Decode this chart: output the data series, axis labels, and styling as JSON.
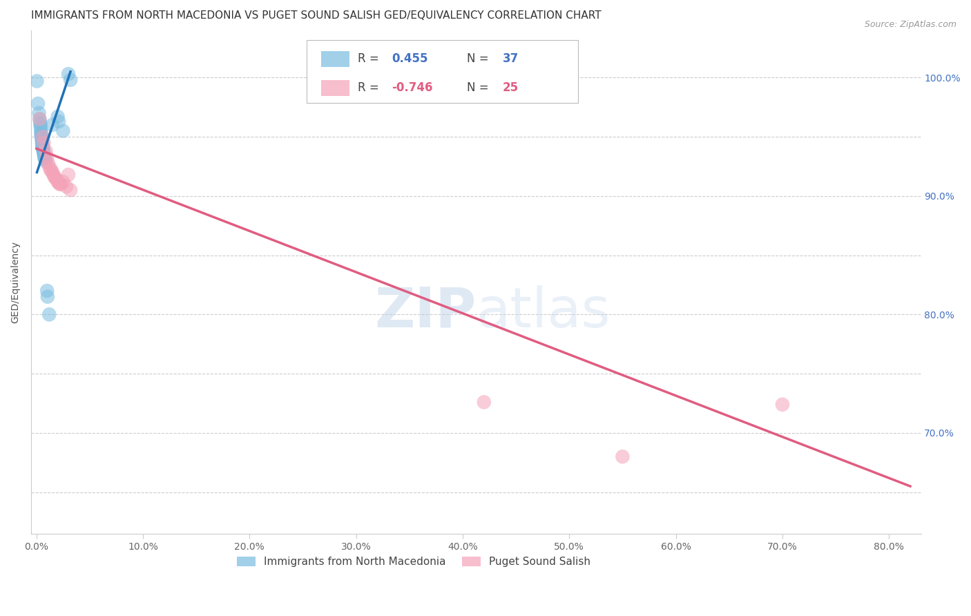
{
  "title": "IMMIGRANTS FROM NORTH MACEDONIA VS PUGET SOUND SALISH GED/EQUIVALENCY CORRELATION CHART",
  "source": "Source: ZipAtlas.com",
  "ylabel": "GED/Equivalency",
  "xlim": [
    -0.5,
    83.0
  ],
  "ylim": [
    0.615,
    1.04
  ],
  "x_ticks": [
    0.0,
    10.0,
    20.0,
    30.0,
    40.0,
    50.0,
    60.0,
    70.0,
    80.0
  ],
  "y_ticks": [
    0.65,
    0.7,
    0.75,
    0.8,
    0.85,
    0.9,
    0.95,
    1.0
  ],
  "y_tick_labels_right": [
    "",
    "70.0%",
    "",
    "80.0%",
    "",
    "90.0%",
    "",
    "100.0%"
  ],
  "blue_label": "Immigrants from North Macedonia",
  "pink_label": "Puget Sound Salish",
  "blue_R": "0.455",
  "blue_N": "37",
  "pink_R": "-0.746",
  "pink_N": "25",
  "blue_color": "#7bbde0",
  "pink_color": "#f4a3b8",
  "blue_line_color": "#2171b5",
  "pink_line_color": "#e05c80",
  "blue_dots": [
    [
      0.05,
      0.997
    ],
    [
      0.15,
      0.978
    ],
    [
      0.25,
      0.97
    ],
    [
      0.3,
      0.965
    ],
    [
      0.35,
      0.962
    ],
    [
      0.38,
      0.96
    ],
    [
      0.4,
      0.958
    ],
    [
      0.42,
      0.955
    ],
    [
      0.44,
      0.953
    ],
    [
      0.46,
      0.951
    ],
    [
      0.48,
      0.95
    ],
    [
      0.5,
      0.948
    ],
    [
      0.52,
      0.946
    ],
    [
      0.54,
      0.944
    ],
    [
      0.56,
      0.943
    ],
    [
      0.58,
      0.942
    ],
    [
      0.6,
      0.941
    ],
    [
      0.62,
      0.94
    ],
    [
      0.64,
      0.939
    ],
    [
      0.66,
      0.938
    ],
    [
      0.68,
      0.937
    ],
    [
      0.7,
      0.936
    ],
    [
      0.72,
      0.935
    ],
    [
      0.74,
      0.934
    ],
    [
      0.76,
      0.933
    ],
    [
      0.78,
      0.932
    ],
    [
      0.8,
      0.931
    ],
    [
      0.9,
      0.929
    ],
    [
      1.0,
      0.82
    ],
    [
      1.05,
      0.815
    ],
    [
      1.2,
      0.8
    ],
    [
      1.5,
      0.96
    ],
    [
      2.0,
      0.967
    ],
    [
      2.1,
      0.963
    ],
    [
      2.5,
      0.955
    ],
    [
      3.0,
      1.003
    ],
    [
      3.2,
      0.998
    ]
  ],
  "pink_dots": [
    [
      0.3,
      0.965
    ],
    [
      0.6,
      0.95
    ],
    [
      0.7,
      0.945
    ],
    [
      0.9,
      0.938
    ],
    [
      1.0,
      0.933
    ],
    [
      1.1,
      0.928
    ],
    [
      1.2,
      0.925
    ],
    [
      1.3,
      0.922
    ],
    [
      1.4,
      0.922
    ],
    [
      1.5,
      0.92
    ],
    [
      1.6,
      0.918
    ],
    [
      1.7,
      0.916
    ],
    [
      1.8,
      0.915
    ],
    [
      1.9,
      0.914
    ],
    [
      2.0,
      0.912
    ],
    [
      2.1,
      0.911
    ],
    [
      2.2,
      0.91
    ],
    [
      2.3,
      0.91
    ],
    [
      2.5,
      0.912
    ],
    [
      2.8,
      0.908
    ],
    [
      3.0,
      0.918
    ],
    [
      3.2,
      0.905
    ],
    [
      42.0,
      0.726
    ],
    [
      55.0,
      0.68
    ],
    [
      70.0,
      0.724
    ]
  ],
  "blue_line_x": [
    0.05,
    3.2
  ],
  "blue_line_y": [
    0.92,
    1.005
  ],
  "pink_line_x": [
    0.0,
    82.0
  ],
  "pink_line_y": [
    0.94,
    0.655
  ],
  "watermark_zip": "ZIP",
  "watermark_atlas": "atlas",
  "title_fontsize": 11,
  "axis_label_fontsize": 10,
  "tick_fontsize": 10,
  "legend_fontsize": 11,
  "background_color": "#ffffff",
  "grid_color": "#cccccc"
}
